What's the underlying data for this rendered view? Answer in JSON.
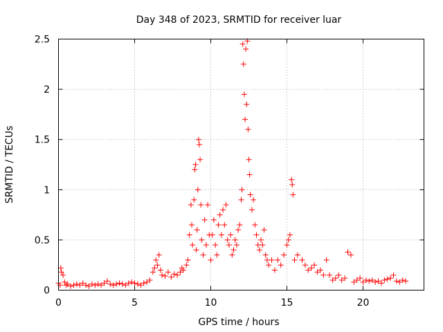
{
  "chart_data": {
    "type": "scatter",
    "title": "Day 348 of 2023, SRMTID for receiver luar",
    "xlabel": "GPS time / hours",
    "ylabel": "SRMTID / TECUs",
    "xlim": [
      0,
      24
    ],
    "ylim": [
      0,
      2.5
    ],
    "xticks": [
      0,
      5,
      10,
      15,
      20
    ],
    "xtick_labels": [
      "0",
      "5",
      "10",
      "15",
      "20"
    ],
    "yticks": [
      0,
      0.5,
      1,
      1.5,
      2,
      2.5
    ],
    "ytick_labels": [
      "0",
      "0.5",
      "1",
      "1.5",
      "2",
      "2.5"
    ],
    "grid": true,
    "marker": "+",
    "series": [
      {
        "name": "SRMTID",
        "color": "#ff0000",
        "points": [
          [
            0.0,
            0.07
          ],
          [
            0.1,
            0.05
          ],
          [
            0.15,
            0.22
          ],
          [
            0.2,
            0.18
          ],
          [
            0.3,
            0.15
          ],
          [
            0.4,
            0.08
          ],
          [
            0.5,
            0.05
          ],
          [
            0.6,
            0.06
          ],
          [
            0.8,
            0.04
          ],
          [
            1.0,
            0.05
          ],
          [
            1.2,
            0.06
          ],
          [
            1.4,
            0.05
          ],
          [
            1.6,
            0.07
          ],
          [
            1.8,
            0.05
          ],
          [
            2.0,
            0.04
          ],
          [
            2.2,
            0.06
          ],
          [
            2.4,
            0.05
          ],
          [
            2.6,
            0.06
          ],
          [
            2.8,
            0.05
          ],
          [
            3.0,
            0.07
          ],
          [
            3.2,
            0.09
          ],
          [
            3.4,
            0.06
          ],
          [
            3.6,
            0.05
          ],
          [
            3.8,
            0.06
          ],
          [
            4.0,
            0.07
          ],
          [
            4.2,
            0.06
          ],
          [
            4.4,
            0.05
          ],
          [
            4.6,
            0.07
          ],
          [
            4.8,
            0.08
          ],
          [
            5.0,
            0.07
          ],
          [
            5.2,
            0.06
          ],
          [
            5.4,
            0.05
          ],
          [
            5.6,
            0.07
          ],
          [
            5.8,
            0.08
          ],
          [
            6.0,
            0.1
          ],
          [
            6.2,
            0.18
          ],
          [
            6.3,
            0.22
          ],
          [
            6.4,
            0.3
          ],
          [
            6.5,
            0.25
          ],
          [
            6.6,
            0.35
          ],
          [
            6.7,
            0.2
          ],
          [
            6.8,
            0.15
          ],
          [
            7.0,
            0.14
          ],
          [
            7.2,
            0.18
          ],
          [
            7.4,
            0.13
          ],
          [
            7.6,
            0.16
          ],
          [
            7.8,
            0.15
          ],
          [
            8.0,
            0.18
          ],
          [
            8.1,
            0.22
          ],
          [
            8.2,
            0.2
          ],
          [
            8.4,
            0.25
          ],
          [
            8.5,
            0.3
          ],
          [
            8.6,
            0.55
          ],
          [
            8.7,
            0.85
          ],
          [
            8.75,
            0.65
          ],
          [
            8.8,
            0.45
          ],
          [
            8.9,
            0.9
          ],
          [
            8.95,
            1.2
          ],
          [
            9.0,
            1.25
          ],
          [
            9.05,
            0.4
          ],
          [
            9.1,
            0.6
          ],
          [
            9.15,
            1.0
          ],
          [
            9.2,
            1.5
          ],
          [
            9.25,
            1.45
          ],
          [
            9.3,
            1.3
          ],
          [
            9.35,
            0.85
          ],
          [
            9.4,
            0.5
          ],
          [
            9.5,
            0.35
          ],
          [
            9.6,
            0.7
          ],
          [
            9.7,
            0.45
          ],
          [
            9.8,
            0.85
          ],
          [
            9.9,
            0.55
          ],
          [
            10.0,
            0.3
          ],
          [
            10.1,
            0.55
          ],
          [
            10.2,
            0.7
          ],
          [
            10.3,
            0.45
          ],
          [
            10.4,
            0.35
          ],
          [
            10.5,
            0.65
          ],
          [
            10.6,
            0.75
          ],
          [
            10.7,
            0.55
          ],
          [
            10.8,
            0.8
          ],
          [
            10.9,
            0.65
          ],
          [
            11.0,
            0.85
          ],
          [
            11.1,
            0.5
          ],
          [
            11.2,
            0.45
          ],
          [
            11.3,
            0.55
          ],
          [
            11.4,
            0.35
          ],
          [
            11.5,
            0.4
          ],
          [
            11.6,
            0.5
          ],
          [
            11.7,
            0.45
          ],
          [
            11.8,
            0.6
          ],
          [
            11.9,
            0.65
          ],
          [
            12.0,
            0.9
          ],
          [
            12.05,
            1.0
          ],
          [
            12.1,
            2.45
          ],
          [
            12.15,
            2.25
          ],
          [
            12.2,
            1.95
          ],
          [
            12.25,
            1.7
          ],
          [
            12.3,
            2.4
          ],
          [
            12.35,
            1.85
          ],
          [
            12.4,
            2.48
          ],
          [
            12.45,
            1.6
          ],
          [
            12.5,
            1.3
          ],
          [
            12.55,
            1.15
          ],
          [
            12.6,
            0.95
          ],
          [
            12.7,
            0.8
          ],
          [
            12.8,
            0.9
          ],
          [
            12.9,
            0.65
          ],
          [
            13.0,
            0.55
          ],
          [
            13.1,
            0.45
          ],
          [
            13.2,
            0.4
          ],
          [
            13.3,
            0.5
          ],
          [
            13.4,
            0.45
          ],
          [
            13.5,
            0.6
          ],
          [
            13.6,
            0.35
          ],
          [
            13.7,
            0.3
          ],
          [
            13.8,
            0.25
          ],
          [
            14.0,
            0.3
          ],
          [
            14.2,
            0.2
          ],
          [
            14.4,
            0.3
          ],
          [
            14.6,
            0.25
          ],
          [
            14.8,
            0.35
          ],
          [
            15.0,
            0.45
          ],
          [
            15.1,
            0.5
          ],
          [
            15.2,
            0.55
          ],
          [
            15.3,
            1.1
          ],
          [
            15.35,
            1.05
          ],
          [
            15.4,
            0.95
          ],
          [
            15.5,
            0.3
          ],
          [
            15.7,
            0.35
          ],
          [
            16.0,
            0.3
          ],
          [
            16.2,
            0.25
          ],
          [
            16.4,
            0.2
          ],
          [
            16.6,
            0.22
          ],
          [
            16.8,
            0.25
          ],
          [
            17.0,
            0.18
          ],
          [
            17.2,
            0.2
          ],
          [
            17.4,
            0.15
          ],
          [
            17.6,
            0.3
          ],
          [
            17.8,
            0.15
          ],
          [
            18.0,
            0.1
          ],
          [
            18.2,
            0.12
          ],
          [
            18.4,
            0.15
          ],
          [
            18.6,
            0.1
          ],
          [
            18.8,
            0.12
          ],
          [
            19.0,
            0.38
          ],
          [
            19.2,
            0.35
          ],
          [
            19.4,
            0.08
          ],
          [
            19.6,
            0.1
          ],
          [
            19.8,
            0.12
          ],
          [
            20.0,
            0.08
          ],
          [
            20.2,
            0.1
          ],
          [
            20.4,
            0.09
          ],
          [
            20.6,
            0.1
          ],
          [
            20.8,
            0.08
          ],
          [
            21.0,
            0.09
          ],
          [
            21.2,
            0.07
          ],
          [
            21.4,
            0.1
          ],
          [
            21.6,
            0.11
          ],
          [
            21.8,
            0.12
          ],
          [
            22.0,
            0.15
          ],
          [
            22.2,
            0.09
          ],
          [
            22.4,
            0.08
          ],
          [
            22.6,
            0.1
          ],
          [
            22.8,
            0.09
          ]
        ]
      }
    ]
  }
}
